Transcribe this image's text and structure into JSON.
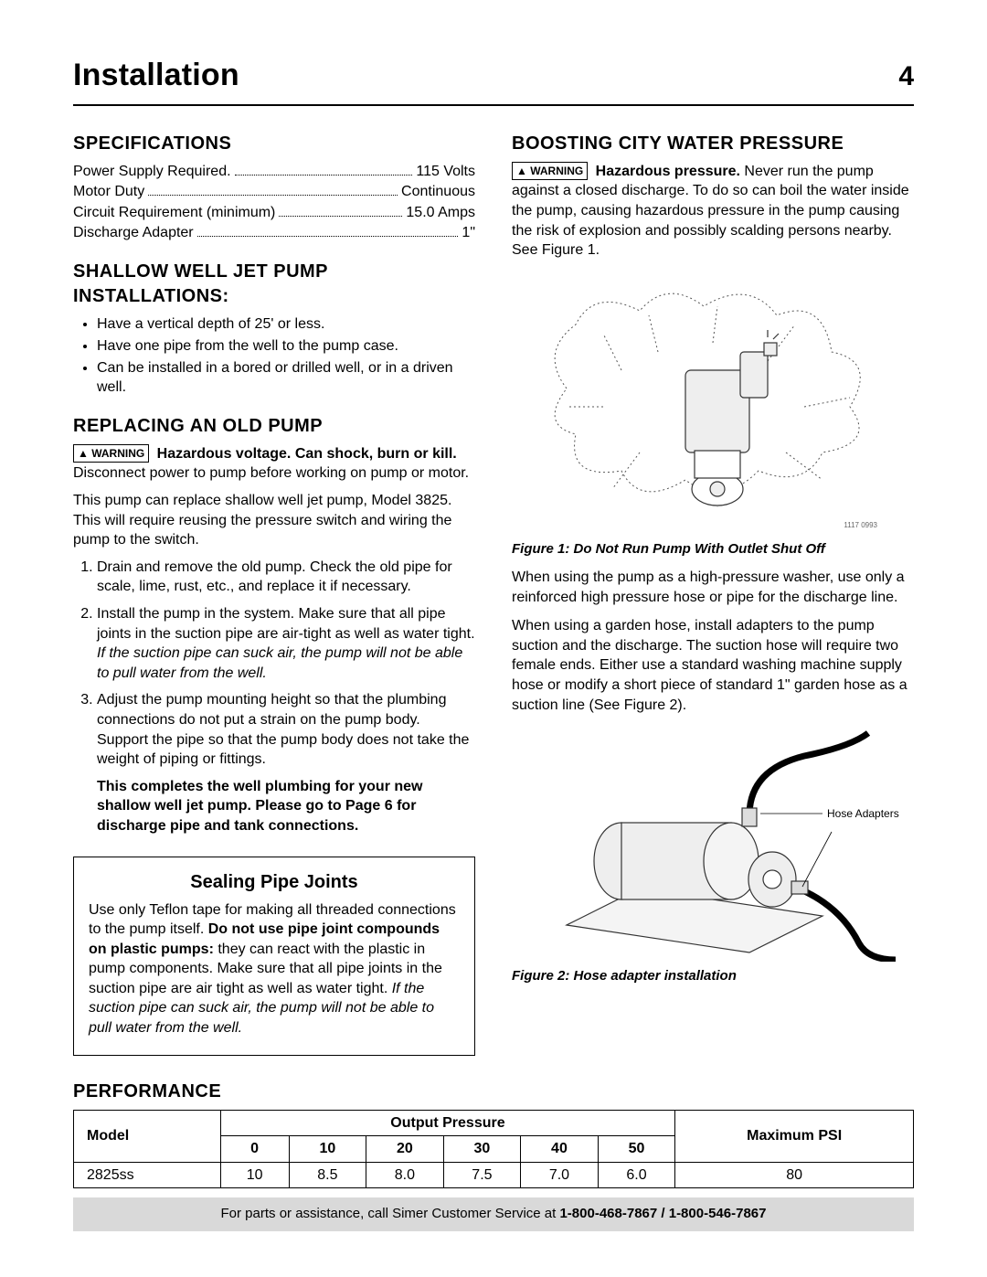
{
  "header": {
    "title": "Installation",
    "page": "4"
  },
  "left": {
    "specs": {
      "heading": "SPECIFICATIONS",
      "rows": [
        {
          "label": "Power Supply Required.",
          "value": "115 Volts"
        },
        {
          "label": "Motor Duty",
          "value": "Continuous"
        },
        {
          "label": "Circuit Requirement (minimum)",
          "value": "15.0 Amps"
        },
        {
          "label": "Discharge Adapter",
          "value": "1\""
        }
      ]
    },
    "shallow": {
      "heading": "SHALLOW WELL JET PUMP INSTALLATIONS:",
      "bullets": [
        "Have a vertical depth of 25' or less.",
        "Have one pipe from the well to the pump case.",
        "Can be installed in a bored or drilled well, or in a driven well."
      ]
    },
    "replacing": {
      "heading": "REPLACING AN OLD PUMP",
      "warn_label": "▲ WARNING",
      "warn_bold": "Hazardous voltage. Can shock, burn or kill.",
      "warn_rest": " Disconnect power to pump before working on pump or motor.",
      "intro": "This pump can replace shallow well jet pump, Model 3825. This will require reusing the pressure switch and wiring the pump to the switch.",
      "steps": [
        "Drain and remove the old pump. Check the old pipe for scale, lime, rust, etc., and replace it if necessary.",
        "Install the pump in the system. Make sure that all pipe joints in the suction pipe are air-tight as well as water tight. ",
        "Adjust the pump mounting height so that the plumbing connections do not put a strain on the pump body. Support the pipe so that the pump body does not take the weight of piping or fittings."
      ],
      "step2_ital": "If the suction pipe can suck air, the pump will not be able to pull water from the well.",
      "closing_bold": "This completes the well plumbing for your new shallow well jet pump. Please go to Page 6 for discharge pipe and tank connections."
    },
    "sealing": {
      "heading": "Sealing Pipe Joints",
      "p1a": "Use only Teflon tape for making all threaded connections to the pump itself. ",
      "p1b": "Do not use pipe joint compounds on plastic pumps:",
      "p1c": " they can react with the plastic in pump components. Make sure that all pipe joints in the suction pipe are air tight as well as water tight. ",
      "p1d": "If the suction pipe can suck air, the pump will not be able to pull water from the well."
    }
  },
  "right": {
    "boost": {
      "heading": "BOOSTING CITY WATER PRESSURE",
      "warn_label": "▲ WARNING",
      "warn_bold": "Hazardous pressure.",
      "warn_rest": " Never run the pump against a closed discharge. To do so can boil the water inside the pump, causing hazardous pressure in the pump causing the risk of explosion and possibly scalding persons nearby. See Figure 1.",
      "fig1_caption": "Figure 1: Do Not Run Pump With Outlet Shut Off",
      "fig1_code": "1117 0993",
      "p2": "When using the pump as a high-pressure washer, use only a reinforced high pressure hose or pipe for the discharge line.",
      "p3": "When using a garden hose, install adapters to the pump suction and the discharge. The suction hose will require two female ends. Either use a standard washing machine supply hose or modify a short piece of standard 1\" garden hose as a suction line (See Figure 2).",
      "fig2_label": "Hose Adapters",
      "fig2_caption": "Figure 2: Hose adapter installation"
    }
  },
  "performance": {
    "heading": "PERFORMANCE",
    "op_header": "Output Pressure",
    "max_header": "Maximum PSI",
    "model_header": "Model",
    "pressure_cols": [
      "0",
      "10",
      "20",
      "30",
      "40",
      "50"
    ],
    "rows": [
      {
        "model": "2825ss",
        "vals": [
          "10",
          "8.5",
          "8.0",
          "7.5",
          "7.0",
          "6.0"
        ],
        "max": "80"
      }
    ]
  },
  "footer": {
    "text_a": "For parts or assistance, call Simer Customer Service at ",
    "text_b": "1-800-468-7867 / 1-800-546-7867"
  },
  "colors": {
    "text": "#000000",
    "bg": "#ffffff",
    "footer_bg": "#d9d9d9",
    "illus_stroke": "#555555",
    "illus_fill": "#eeeeee"
  }
}
